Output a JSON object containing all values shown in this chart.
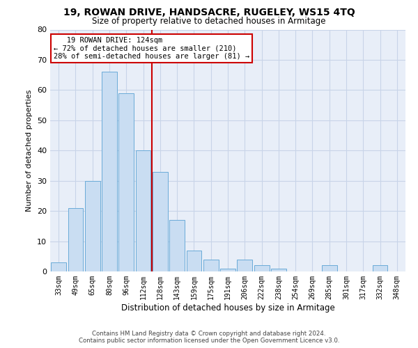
{
  "title": "19, ROWAN DRIVE, HANDSACRE, RUGELEY, WS15 4TQ",
  "subtitle": "Size of property relative to detached houses in Armitage",
  "xlabel": "Distribution of detached houses by size in Armitage",
  "ylabel": "Number of detached properties",
  "categories": [
    "33sqm",
    "49sqm",
    "65sqm",
    "80sqm",
    "96sqm",
    "112sqm",
    "128sqm",
    "143sqm",
    "159sqm",
    "175sqm",
    "191sqm",
    "206sqm",
    "222sqm",
    "238sqm",
    "254sqm",
    "269sqm",
    "285sqm",
    "301sqm",
    "317sqm",
    "332sqm",
    "348sqm"
  ],
  "values": [
    3,
    21,
    30,
    66,
    59,
    40,
    33,
    17,
    7,
    4,
    1,
    4,
    2,
    1,
    0,
    0,
    2,
    0,
    0,
    2,
    0
  ],
  "bar_color": "#c9ddf2",
  "bar_edge_color": "#6aabd8",
  "grid_color": "#c8d4e8",
  "background_color": "#e8eef8",
  "annotation_line1": "   19 ROWAN DRIVE: 124sqm",
  "annotation_line2": "← 72% of detached houses are smaller (210)",
  "annotation_line3": "28% of semi-detached houses are larger (81) →",
  "vline_position": 5.5,
  "vline_color": "#cc0000",
  "annotation_box_color": "#cc0000",
  "ylim": [
    0,
    80
  ],
  "yticks": [
    0,
    10,
    20,
    30,
    40,
    50,
    60,
    70,
    80
  ],
  "footer_line1": "Contains HM Land Registry data © Crown copyright and database right 2024.",
  "footer_line2": "Contains public sector information licensed under the Open Government Licence v3.0."
}
